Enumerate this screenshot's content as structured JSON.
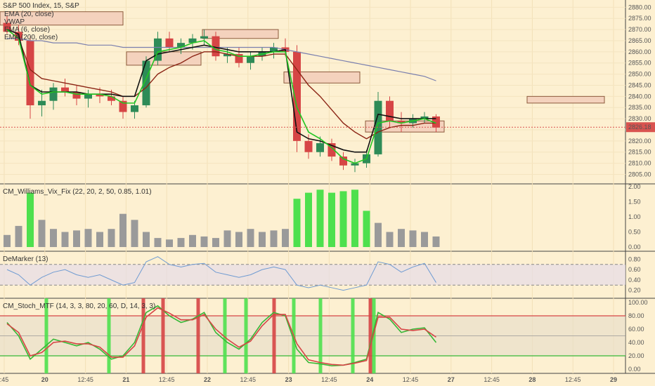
{
  "colors": {
    "background": "#fdf0d1",
    "up": "#2e8b57",
    "down": "#d64545",
    "ema_green": "#22c522",
    "ema_black": "#111111",
    "ema_brown": "#8b2414",
    "ema_200": "#7a7fae",
    "vix_gray": "#9a9a9a",
    "vix_green": "#4ee04e",
    "demarker": "#6f9bd2",
    "stoch_k": "#36b836",
    "stoch_d": "#d64545",
    "price_tag": "#d9534f"
  },
  "chart_data": [
    {
      "type": "candlestick",
      "title": "S&P 500 Index, 15, S&P",
      "legend": [
        "EMA (20, close)",
        "VWAP",
        "EMA (6, close)",
        "EMA (200, close)"
      ],
      "price_axis": [
        "2880.00",
        "2875.00",
        "2870.00",
        "2865.00",
        "2860.00",
        "2855.00",
        "2850.00",
        "2845.00",
        "2840.00",
        "2835.00",
        "2830.00",
        "2825.00",
        "2820.00",
        "2815.00",
        "2810.00",
        "2805.00"
      ],
      "last_price": "2826.18",
      "ylim": [
        2802,
        2882
      ],
      "time_axis": [
        ":45",
        "20",
        "12:45",
        "21",
        "12:45",
        "22",
        "12:45",
        "23",
        "12:45",
        "24",
        "12:45",
        "27",
        "12:45",
        "28",
        "12:45",
        "29"
      ],
      "candles": [
        [
          2873,
          2876,
          2868,
          2869
        ],
        [
          2869,
          2872,
          2863,
          2865
        ],
        [
          2865,
          2867,
          2830,
          2836
        ],
        [
          2836,
          2843,
          2831,
          2838
        ],
        [
          2838,
          2846,
          2834,
          2844
        ],
        [
          2844,
          2848,
          2840,
          2842
        ],
        [
          2842,
          2845,
          2836,
          2839
        ],
        [
          2839,
          2843,
          2835,
          2841
        ],
        [
          2841,
          2844,
          2837,
          2840
        ],
        [
          2840,
          2843,
          2836,
          2838
        ],
        [
          2838,
          2840,
          2830,
          2833
        ],
        [
          2833,
          2838,
          2830,
          2836
        ],
        [
          2836,
          2858,
          2835,
          2856
        ],
        [
          2856,
          2869,
          2854,
          2866
        ],
        [
          2866,
          2869,
          2860,
          2862
        ],
        [
          2862,
          2866,
          2859,
          2864
        ],
        [
          2864,
          2868,
          2861,
          2866
        ],
        [
          2866,
          2870,
          2863,
          2867
        ],
        [
          2867,
          2869,
          2856,
          2858
        ],
        [
          2858,
          2862,
          2855,
          2859
        ],
        [
          2859,
          2862,
          2853,
          2855
        ],
        [
          2855,
          2860,
          2852,
          2858
        ],
        [
          2858,
          2862,
          2856,
          2860
        ],
        [
          2860,
          2864,
          2857,
          2862
        ],
        [
          2862,
          2866,
          2858,
          2860
        ],
        [
          2860,
          2863,
          2815,
          2820
        ],
        [
          2820,
          2823,
          2812,
          2815
        ],
        [
          2815,
          2822,
          2813,
          2819
        ],
        [
          2819,
          2821,
          2811,
          2813
        ],
        [
          2813,
          2815,
          2807,
          2809
        ],
        [
          2809,
          2812,
          2806,
          2810
        ],
        [
          2810,
          2816,
          2808,
          2814
        ],
        [
          2814,
          2842,
          2813,
          2838
        ],
        [
          2838,
          2840,
          2826,
          2829
        ],
        [
          2829,
          2833,
          2824,
          2828
        ],
        [
          2828,
          2832,
          2826,
          2830
        ],
        [
          2830,
          2833,
          2828,
          2831
        ],
        [
          2831,
          2832,
          2824,
          2826
        ]
      ],
      "ema20": [
        2870,
        2866,
        2852,
        2848,
        2847,
        2846,
        2845,
        2844,
        2843,
        2842,
        2840,
        2840,
        2844,
        2850,
        2853,
        2855,
        2858,
        2860,
        2860,
        2859,
        2858,
        2858,
        2858,
        2859,
        2859,
        2852,
        2845,
        2840,
        2834,
        2828,
        2824,
        2821,
        2824,
        2826,
        2827,
        2827,
        2828,
        2828
      ],
      "vwap": [
        2870,
        2868,
        2845,
        2842,
        2842,
        2842,
        2842,
        2841,
        2841,
        2841,
        2840,
        2840,
        2856,
        2859,
        2860,
        2861,
        2862,
        2863,
        2862,
        2861,
        2860,
        2860,
        2860,
        2860,
        2861,
        2824,
        2821,
        2820,
        2818,
        2816,
        2815,
        2815,
        2832,
        2831,
        2830,
        2830,
        2830,
        2830
      ],
      "ema6": [
        2870,
        2866,
        2845,
        2841,
        2842,
        2842,
        2841,
        2841,
        2841,
        2840,
        2837,
        2837,
        2848,
        2860,
        2861,
        2862,
        2864,
        2865,
        2861,
        2860,
        2858,
        2858,
        2859,
        2860,
        2860,
        2835,
        2824,
        2821,
        2817,
        2812,
        2810,
        2812,
        2828,
        2829,
        2828,
        2829,
        2830,
        2828
      ],
      "ema200": [
        2866,
        2866,
        2865,
        2865,
        2864,
        2864,
        2864,
        2863,
        2863,
        2863,
        2862,
        2862,
        2862,
        2862,
        2862,
        2862,
        2862,
        2862,
        2862,
        2862,
        2862,
        2862,
        2862,
        2862,
        2861,
        2860,
        2859,
        2858,
        2857,
        2856,
        2855,
        2854,
        2853,
        2852,
        2851,
        2850,
        2849,
        2847
      ],
      "annotations": [
        [
          2878,
          2872
        ],
        [
          2870,
          2866
        ],
        [
          2860,
          2854
        ],
        [
          2851,
          2846
        ],
        [
          2840,
          2837
        ],
        [
          2829,
          2824
        ]
      ]
    },
    {
      "type": "bar",
      "title": "CM_Williams_Vix_Fix (22, 20, 2, 50, 0.85, 1.01)",
      "y_axis": [
        "2.00",
        "1.50",
        "1.00",
        "0.50",
        "0.00"
      ],
      "ylim": [
        0,
        2
      ],
      "values": [
        0.4,
        0.7,
        1.8,
        0.9,
        0.6,
        0.5,
        0.55,
        0.6,
        0.5,
        0.6,
        1.1,
        0.9,
        0.5,
        0.3,
        0.25,
        0.3,
        0.4,
        0.35,
        0.3,
        0.55,
        0.5,
        0.6,
        0.5,
        0.55,
        0.6,
        1.6,
        1.8,
        1.9,
        1.8,
        1.85,
        1.9,
        1.2,
        0.8,
        0.5,
        0.6,
        0.55,
        0.5,
        0.35
      ],
      "highlighted": [
        2,
        25,
        26,
        27,
        28,
        29,
        30,
        31
      ]
    },
    {
      "type": "line",
      "title": "DeMarker (13)",
      "y_axis": [
        "0.80",
        "0.60",
        "0.40",
        "0.20"
      ],
      "ylim": [
        0.1,
        0.9
      ],
      "band": [
        0.3,
        0.7
      ],
      "values": [
        0.6,
        0.5,
        0.3,
        0.45,
        0.55,
        0.6,
        0.5,
        0.45,
        0.5,
        0.4,
        0.3,
        0.35,
        0.75,
        0.85,
        0.7,
        0.65,
        0.7,
        0.72,
        0.55,
        0.5,
        0.45,
        0.5,
        0.6,
        0.65,
        0.6,
        0.3,
        0.25,
        0.3,
        0.25,
        0.2,
        0.25,
        0.3,
        0.75,
        0.7,
        0.55,
        0.65,
        0.72,
        0.35
      ]
    },
    {
      "type": "line",
      "title": "CM_Stoch_MTF (14, 3, 3, 80, 20, 60, D, 14, 3, 3)",
      "y_axis": [
        "100.00",
        "80.00",
        "60.00",
        "40.00",
        "20.00",
        "0.00"
      ],
      "ylim": [
        0,
        100
      ],
      "lines": [
        80,
        20
      ],
      "series": [
        {
          "values": [
            70,
            50,
            15,
            30,
            45,
            40,
            35,
            40,
            30,
            15,
            20,
            40,
            85,
            95,
            80,
            70,
            75,
            85,
            55,
            40,
            30,
            45,
            70,
            85,
            80,
            30,
            10,
            8,
            5,
            6,
            10,
            15,
            85,
            75,
            55,
            60,
            62,
            40
          ]
        },
        {
          "values": [
            68,
            55,
            20,
            25,
            40,
            42,
            38,
            38,
            33,
            18,
            18,
            35,
            78,
            92,
            84,
            74,
            74,
            82,
            60,
            45,
            33,
            42,
            65,
            82,
            82,
            38,
            14,
            10,
            7,
            6,
            9,
            13,
            78,
            78,
            60,
            58,
            60,
            48
          ]
        }
      ],
      "signals_up": [
        4,
        13,
        24,
        27,
        30,
        36,
        44,
        48
      ],
      "signals_down": [
        12,
        17,
        21,
        30,
        38
      ],
      "time_axis": [
        ":45",
        "20",
        "12:45",
        "21",
        "12:45",
        "22",
        "12:45",
        "23",
        "12:45",
        "24",
        "12:45",
        "27",
        "12:45",
        "28",
        "12:45",
        "29"
      ]
    }
  ]
}
